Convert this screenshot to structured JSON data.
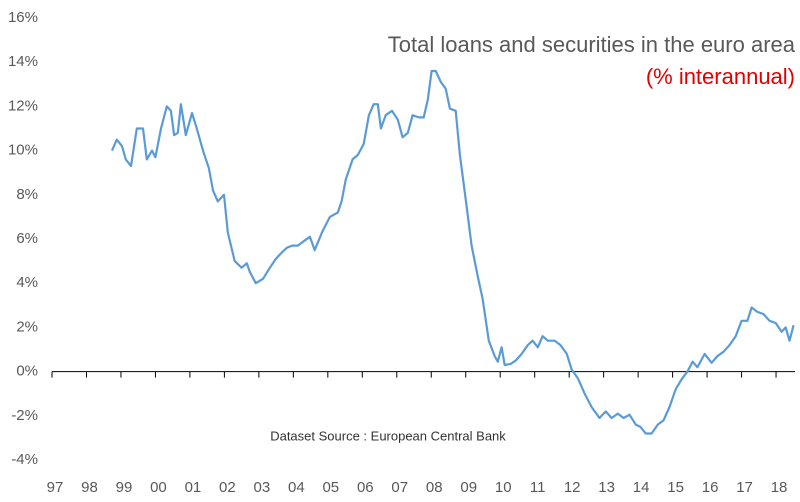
{
  "chart_data": {
    "type": "line",
    "title": "Total loans and securities in the euro area",
    "subtitle": "(% interannual)",
    "annotation": "Dataset Source : European Central Bank",
    "xlim": [
      1997,
      2018.55
    ],
    "ylim": [
      -4,
      16
    ],
    "xticks": [
      {
        "value": 1997,
        "label": "97"
      },
      {
        "value": 1998,
        "label": "98"
      },
      {
        "value": 1999,
        "label": "99"
      },
      {
        "value": 2000,
        "label": "00"
      },
      {
        "value": 2001,
        "label": "01"
      },
      {
        "value": 2002,
        "label": "02"
      },
      {
        "value": 2003,
        "label": "03"
      },
      {
        "value": 2004,
        "label": "04"
      },
      {
        "value": 2005,
        "label": "05"
      },
      {
        "value": 2006,
        "label": "06"
      },
      {
        "value": 2007,
        "label": "07"
      },
      {
        "value": 2008,
        "label": "08"
      },
      {
        "value": 2009,
        "label": "09"
      },
      {
        "value": 2010,
        "label": "10"
      },
      {
        "value": 2011,
        "label": "11"
      },
      {
        "value": 2012,
        "label": "12"
      },
      {
        "value": 2013,
        "label": "13"
      },
      {
        "value": 2014,
        "label": "14"
      },
      {
        "value": 2015,
        "label": "15"
      },
      {
        "value": 2016,
        "label": "16"
      },
      {
        "value": 2017,
        "label": "17"
      },
      {
        "value": 2018,
        "label": "18"
      }
    ],
    "yticks": [
      {
        "value": -4,
        "label": "-4%"
      },
      {
        "value": -2,
        "label": "-2%"
      },
      {
        "value": 0,
        "label": "0%"
      },
      {
        "value": 2,
        "label": "2%"
      },
      {
        "value": 4,
        "label": "4%"
      },
      {
        "value": 6,
        "label": "6%"
      },
      {
        "value": 8,
        "label": "8%"
      },
      {
        "value": 10,
        "label": "10%"
      },
      {
        "value": 12,
        "label": "12%"
      },
      {
        "value": 14,
        "label": "14%"
      },
      {
        "value": 16,
        "label": "16%"
      }
    ],
    "x": [
      1998.74,
      1998.88,
      1999.03,
      1999.14,
      1999.29,
      1999.46,
      1999.64,
      1999.75,
      1999.9,
      2000.0,
      2000.16,
      2000.33,
      2000.45,
      2000.54,
      2000.65,
      2000.74,
      2000.88,
      2001.06,
      2001.2,
      2001.38,
      2001.55,
      2001.67,
      2001.81,
      2001.99,
      2002.1,
      2002.3,
      2002.5,
      2002.65,
      2002.74,
      2002.91,
      2003.12,
      2003.32,
      2003.49,
      2003.67,
      2003.81,
      2003.96,
      2004.13,
      2004.3,
      2004.48,
      2004.62,
      2004.83,
      2005.06,
      2005.29,
      2005.4,
      2005.52,
      2005.72,
      2005.87,
      2006.04,
      2006.19,
      2006.33,
      2006.45,
      2006.54,
      2006.68,
      2006.86,
      2007.03,
      2007.17,
      2007.32,
      2007.46,
      2007.64,
      2007.78,
      2007.9,
      2008.01,
      2008.13,
      2008.28,
      2008.42,
      2008.54,
      2008.71,
      2008.83,
      2009.0,
      2009.17,
      2009.35,
      2009.49,
      2009.67,
      2009.84,
      2009.93,
      2010.04,
      2010.13,
      2010.3,
      2010.45,
      2010.62,
      2010.8,
      2010.94,
      2011.09,
      2011.23,
      2011.38,
      2011.58,
      2011.75,
      2011.93,
      2012.07,
      2012.25,
      2012.45,
      2012.65,
      2012.88,
      2013.06,
      2013.23,
      2013.41,
      2013.58,
      2013.75,
      2013.93,
      2014.07,
      2014.22,
      2014.39,
      2014.57,
      2014.74,
      2014.91,
      2015.09,
      2015.26,
      2015.43,
      2015.58,
      2015.72,
      2015.93,
      2016.13,
      2016.3,
      2016.48,
      2016.65,
      2016.83,
      2017.0,
      2017.17,
      2017.29,
      2017.46,
      2017.64,
      2017.81,
      2017.99,
      2018.16,
      2018.28,
      2018.39,
      2018.51
    ],
    "series": [
      {
        "name": "Total loans and securities",
        "color": "#5b9bd5",
        "values": [
          10.0,
          10.5,
          10.2,
          9.6,
          9.3,
          11.0,
          11.0,
          9.6,
          10.0,
          9.7,
          11.0,
          12.0,
          11.8,
          10.7,
          10.8,
          12.1,
          10.7,
          11.7,
          11.0,
          10.0,
          9.2,
          8.2,
          7.7,
          8.0,
          6.3,
          5.0,
          4.7,
          4.9,
          4.5,
          4.0,
          4.2,
          4.7,
          5.1,
          5.4,
          5.6,
          5.7,
          5.7,
          5.9,
          6.1,
          5.5,
          6.3,
          7.0,
          7.2,
          7.7,
          8.7,
          9.6,
          9.8,
          10.3,
          11.6,
          12.1,
          12.1,
          11.0,
          11.6,
          11.8,
          11.4,
          10.6,
          10.8,
          11.6,
          11.5,
          11.5,
          12.3,
          13.6,
          13.6,
          13.1,
          12.8,
          11.9,
          11.8,
          9.8,
          7.8,
          5.7,
          4.3,
          3.3,
          1.4,
          0.7,
          0.45,
          1.1,
          0.3,
          0.35,
          0.5,
          0.8,
          1.2,
          1.4,
          1.1,
          1.6,
          1.4,
          1.4,
          1.2,
          0.8,
          0.1,
          -0.3,
          -1.0,
          -1.6,
          -2.1,
          -1.8,
          -2.1,
          -1.9,
          -2.1,
          -1.95,
          -2.4,
          -2.5,
          -2.8,
          -2.8,
          -2.4,
          -2.2,
          -1.6,
          -0.8,
          -0.35,
          0,
          0.45,
          0.2,
          0.8,
          0.4,
          0.7,
          0.9,
          1.2,
          1.6,
          2.3,
          2.3,
          2.9,
          2.7,
          2.6,
          2.3,
          2.2,
          1.8,
          2.0,
          1.4,
          2.1
        ]
      }
    ]
  }
}
